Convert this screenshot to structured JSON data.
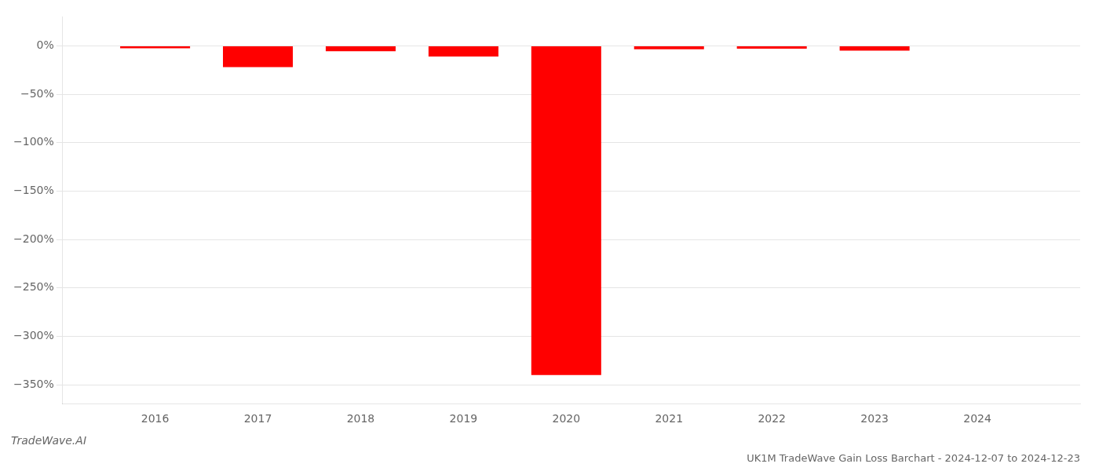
{
  "chart_data": {
    "type": "bar",
    "title": "UK1M TradeWave Gain Loss Barchart - 2024-12-07 to 2024-12-23",
    "annotations": [
      "TradeWave.AI"
    ],
    "x": [
      2016,
      2017,
      2018,
      2019,
      2020,
      2021,
      2022,
      2023,
      2024
    ],
    "values": [
      -2.5,
      -22.0,
      -5.5,
      -11.0,
      -340.0,
      -3.5,
      -3.0,
      -5.0,
      0.0
    ],
    "color": "#ff0000",
    "xlim": [
      2015.1,
      2025.0
    ],
    "xticks": [
      2016,
      2017,
      2018,
      2019,
      2020,
      2021,
      2022,
      2023,
      2024
    ],
    "ylim": [
      -370,
      30
    ],
    "yticks": [
      {
        "value": 0,
        "label": "0%"
      },
      {
        "value": -50,
        "label": "−50%"
      },
      {
        "value": -100,
        "label": "−100%"
      },
      {
        "value": -150,
        "label": "−150%"
      },
      {
        "value": -200,
        "label": "−200%"
      },
      {
        "value": -250,
        "label": "−250%"
      },
      {
        "value": -300,
        "label": "−300%"
      },
      {
        "value": -350,
        "label": "−350%"
      }
    ],
    "grid": true
  }
}
